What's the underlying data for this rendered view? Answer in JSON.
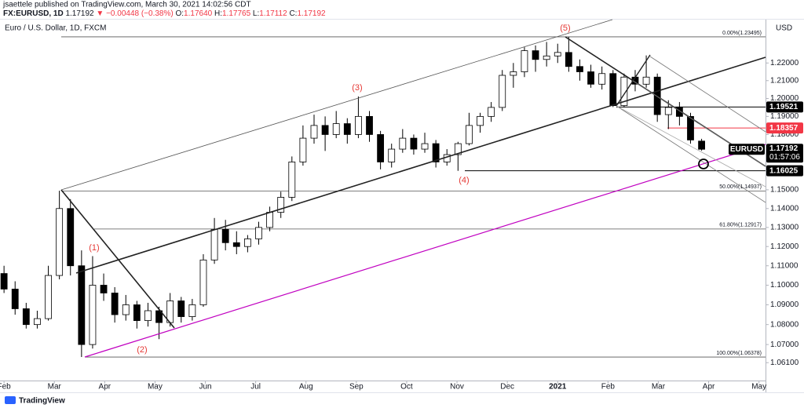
{
  "header": {
    "publisher": "jsaettele published on TradingView.com, March 30, 2021 14:02:56 CDT",
    "symbol": "FX:EURUSD, 1D",
    "last": "1.17192",
    "change": "▼ −0.00448 (−0.38%)",
    "o_label": "O:",
    "o": "1.17640",
    "h_label": "H:",
    "h": "1.17765",
    "l_label": "L:",
    "l": "1.17112",
    "c_label": "C:",
    "c": "1.17192"
  },
  "footer": "TradingView",
  "chart_data": {
    "type": "candlestick",
    "title": "Euro / U.S. Dollar, 1D, FXCM",
    "currency": "USD",
    "log_scale": true,
    "up_color": "#ffffff",
    "down_color": "#000000",
    "border_color": "#000000",
    "x": [
      0,
      0.22,
      0.44,
      0.66,
      0.88,
      1.1,
      1.32,
      1.54,
      1.76,
      1.98,
      2.2,
      2.42,
      2.64,
      2.86,
      3.08,
      3.3,
      3.52,
      3.74,
      3.96,
      4.18,
      4.4,
      4.62,
      4.84,
      5.06,
      5.28,
      5.5,
      5.72,
      5.94,
      6.16,
      6.38,
      6.6,
      6.82,
      7.04,
      7.26,
      7.48,
      7.7,
      7.92,
      8.14,
      8.36,
      8.58,
      8.8,
      9.02,
      9.24,
      9.46,
      9.68,
      9.9,
      10.12,
      10.34,
      10.56,
      10.78,
      11,
      11.22,
      11.44,
      11.66,
      11.88,
      12.1,
      12.32,
      12.54,
      12.76,
      12.98,
      13.2,
      13.42,
      13.64,
      13.86
    ],
    "open": [
      1.106,
      1.098,
      1.088,
      1.08,
      1.083,
      1.105,
      1.14,
      1.11,
      1.07,
      1.1,
      1.096,
      1.085,
      1.09,
      1.082,
      1.087,
      1.081,
      1.092,
      1.084,
      1.09,
      1.113,
      1.129,
      1.122,
      1.12,
      1.124,
      1.13,
      1.138,
      1.146,
      1.165,
      1.178,
      1.185,
      1.18,
      1.186,
      1.18,
      1.19,
      1.18,
      1.165,
      1.172,
      1.178,
      1.172,
      1.175,
      1.165,
      1.169,
      1.175,
      1.185,
      1.19,
      1.195,
      1.213,
      1.215,
      1.227,
      1.222,
      1.224,
      1.226,
      1.218,
      1.215,
      1.208,
      1.214,
      1.196,
      1.212,
      1.208,
      1.212,
      1.191,
      1.195,
      1.19,
      1.1764
    ],
    "high": [
      1.11,
      1.102,
      1.091,
      1.087,
      1.11,
      1.1495,
      1.145,
      1.118,
      1.115,
      1.106,
      1.099,
      1.095,
      1.092,
      1.091,
      1.089,
      1.096,
      1.094,
      1.093,
      1.116,
      1.135,
      1.134,
      1.128,
      1.126,
      1.133,
      1.141,
      1.149,
      1.168,
      1.185,
      1.191,
      1.19,
      1.193,
      1.189,
      1.2011,
      1.193,
      1.182,
      1.175,
      1.183,
      1.18,
      1.181,
      1.177,
      1.172,
      1.176,
      1.192,
      1.192,
      1.198,
      1.216,
      1.22,
      1.229,
      1.23,
      1.232,
      1.231,
      1.2349,
      1.222,
      1.219,
      1.218,
      1.216,
      1.214,
      1.216,
      1.2243,
      1.214,
      1.199,
      1.198,
      1.192,
      1.17765
    ],
    "low": [
      1.096,
      1.085,
      1.078,
      1.078,
      1.082,
      1.103,
      1.105,
      1.0638,
      1.068,
      1.092,
      1.081,
      1.082,
      1.078,
      1.079,
      1.0727,
      1.079,
      1.081,
      1.082,
      1.089,
      1.111,
      1.118,
      1.116,
      1.117,
      1.121,
      1.128,
      1.135,
      1.144,
      1.163,
      1.175,
      1.171,
      1.178,
      1.175,
      1.178,
      1.176,
      1.161,
      1.162,
      1.17,
      1.169,
      1.17,
      1.162,
      1.163,
      1.1602,
      1.174,
      1.181,
      1.187,
      1.193,
      1.206,
      1.212,
      1.215,
      1.218,
      1.22,
      1.215,
      1.21,
      1.206,
      1.205,
      1.1952,
      1.195,
      1.204,
      1.206,
      1.187,
      1.183,
      1.185,
      1.175,
      1.17112
    ],
    "close": [
      1.098,
      1.088,
      1.08,
      1.083,
      1.105,
      1.14,
      1.11,
      1.07,
      1.1,
      1.096,
      1.085,
      1.09,
      1.082,
      1.087,
      1.081,
      1.092,
      1.084,
      1.09,
      1.113,
      1.129,
      1.122,
      1.12,
      1.124,
      1.13,
      1.138,
      1.146,
      1.165,
      1.178,
      1.185,
      1.18,
      1.186,
      1.18,
      1.19,
      1.18,
      1.165,
      1.172,
      1.178,
      1.172,
      1.175,
      1.165,
      1.169,
      1.175,
      1.185,
      1.19,
      1.195,
      1.213,
      1.215,
      1.227,
      1.222,
      1.224,
      1.226,
      1.218,
      1.215,
      1.208,
      1.214,
      1.196,
      1.212,
      1.208,
      1.212,
      1.191,
      1.195,
      1.19,
      1.177,
      1.17192
    ],
    "xlim": [
      -0.08,
      15.13
    ],
    "xticks": [
      {
        "value": 0,
        "label": "Feb"
      },
      {
        "value": 1,
        "label": "Mar"
      },
      {
        "value": 2,
        "label": "Apr"
      },
      {
        "value": 3,
        "label": "May"
      },
      {
        "value": 4,
        "label": "Jun"
      },
      {
        "value": 5,
        "label": "Jul"
      },
      {
        "value": 6,
        "label": "Aug"
      },
      {
        "value": 7,
        "label": "Sep"
      },
      {
        "value": 8,
        "label": "Oct"
      },
      {
        "value": 9,
        "label": "Nov"
      },
      {
        "value": 10,
        "label": "Dec"
      },
      {
        "value": 11,
        "label": "2021"
      },
      {
        "value": 12,
        "label": "Feb"
      },
      {
        "value": 13,
        "label": "Mar"
      },
      {
        "value": 14,
        "label": "Apr"
      },
      {
        "value": 15,
        "label": "May"
      }
    ],
    "ylim": [
      1.0522,
      1.2449
    ],
    "yticks": [
      {
        "value": 1.22,
        "label": "1.22000"
      },
      {
        "value": 1.21,
        "label": "1.21000"
      },
      {
        "value": 1.2,
        "label": "1.20000"
      },
      {
        "value": 1.19,
        "label": "1.19000"
      },
      {
        "value": 1.18,
        "label": "1.18000"
      },
      {
        "value": 1.15,
        "label": "1.15000"
      },
      {
        "value": 1.14,
        "label": "1.14000"
      },
      {
        "value": 1.13,
        "label": "1.13000"
      },
      {
        "value": 1.12,
        "label": "1.12000"
      },
      {
        "value": 1.11,
        "label": "1.11000"
      },
      {
        "value": 1.1,
        "label": "1.10000"
      },
      {
        "value": 1.09,
        "label": "1.09000"
      },
      {
        "value": 1.08,
        "label": "1.08000"
      },
      {
        "value": 1.07,
        "label": "1.07000"
      },
      {
        "value": 1.061,
        "label": "1.06100"
      }
    ],
    "fib_levels": [
      {
        "label": "0.00%(1.23495)",
        "value": 1.23495
      },
      {
        "label": "50.00%(1.14937)",
        "value": 1.14937
      },
      {
        "label": "61.80%(1.12917)",
        "value": 1.12917
      },
      {
        "label": "100.00%(1.06378)",
        "value": 1.06378
      }
    ],
    "price_lines": [
      {
        "value": 1.19521,
        "color": "#000000"
      },
      {
        "value": 1.18357,
        "color": "#f23645"
      },
      {
        "value": 1.16025,
        "color": "#000000"
      }
    ],
    "last_tag": {
      "symbol": "EURUSD",
      "countdown": "01:57:06"
    },
    "wave_labels": [
      "(1)",
      "(2)",
      "(3)",
      "(4)",
      "(5)"
    ],
    "wave_color": "#e53935"
  }
}
